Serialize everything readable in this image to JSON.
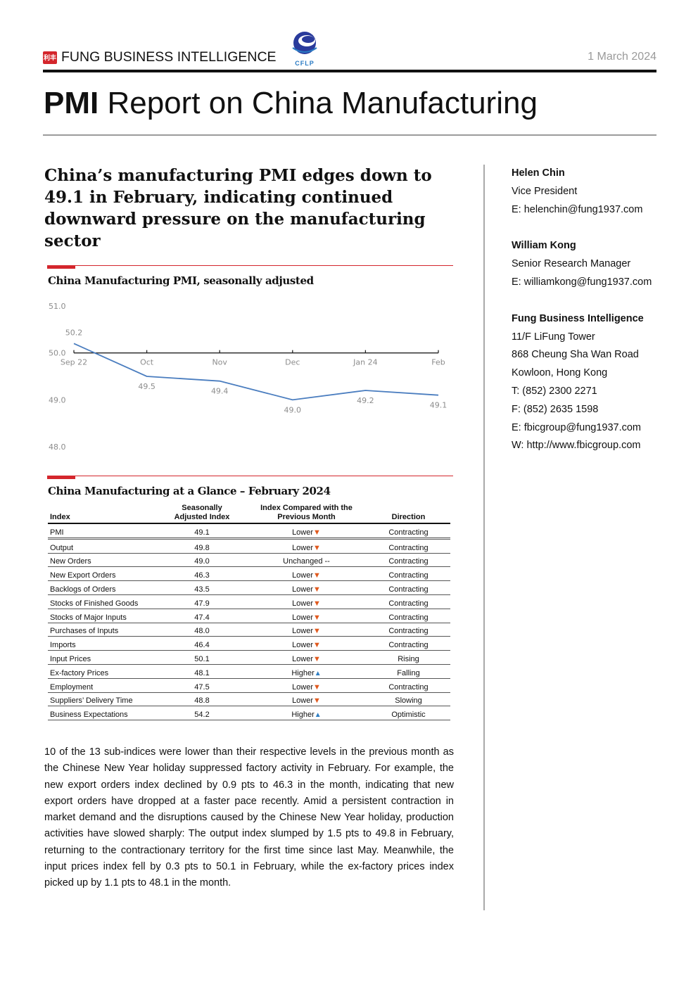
{
  "header": {
    "brand_logo": "利丰",
    "brand_name": "FUNG BUSINESS INTELLIGENCE",
    "partner_logo_text": "CFLP",
    "date": "1 March 2024",
    "title_bold": "PMI",
    "title_rest": " Report on China Manufacturing"
  },
  "headline": "China’s manufacturing PMI edges down to 49.1 in February, indicating continued downward pressure on the manufacturing sector",
  "chart_section": {
    "title": "China Manufacturing PMI, seasonally adjusted"
  },
  "chart_data": {
    "type": "line",
    "title": "China Manufacturing PMI, seasonally adjusted",
    "categories": [
      "Sep 22",
      "Oct",
      "Nov",
      "Dec",
      "Jan 24",
      "Feb"
    ],
    "series": [
      {
        "values": [
          50.2,
          49.5,
          49.4,
          49.0,
          49.2,
          49.1
        ]
      }
    ],
    "data_labels": [
      "50.2",
      "49.5",
      "49.4",
      "49.0",
      "49.2",
      "49.1"
    ],
    "y_ticks": [
      "51.0",
      "50.0",
      "49.0",
      "48.0"
    ],
    "ylim": [
      48.0,
      51.0
    ],
    "x_axis_at": 50.0,
    "line_color": "#4a7dbf",
    "grid": false,
    "legend": "none"
  },
  "table_section": {
    "title": "China Manufacturing at a Glance – February 2024"
  },
  "table": {
    "headers": {
      "index": "Index",
      "value_line1": "Seasonally",
      "value_line2": "Adjusted Index",
      "compare_line1": "Index Compared with the",
      "compare_line2": "Previous Month",
      "direction": "Direction"
    },
    "rows": [
      {
        "index": "PMI",
        "value": "49.1",
        "compare": "Lower",
        "arrow": "down",
        "direction": "Contracting"
      },
      {
        "index": "Output",
        "value": "49.8",
        "compare": "Lower",
        "arrow": "down",
        "direction": "Contracting"
      },
      {
        "index": "New Orders",
        "value": "49.0",
        "compare": "Unchanged --",
        "arrow": "none",
        "direction": "Contracting"
      },
      {
        "index": "New Export Orders",
        "value": "46.3",
        "compare": "Lower",
        "arrow": "down",
        "direction": "Contracting"
      },
      {
        "index": "Backlogs of Orders",
        "value": "43.5",
        "compare": "Lower",
        "arrow": "down",
        "direction": "Contracting"
      },
      {
        "index": "Stocks of Finished Goods",
        "value": "47.9",
        "compare": "Lower",
        "arrow": "down",
        "direction": "Contracting"
      },
      {
        "index": "Stocks of Major Inputs",
        "value": "47.4",
        "compare": "Lower",
        "arrow": "down",
        "direction": "Contracting"
      },
      {
        "index": "Purchases of Inputs",
        "value": "48.0",
        "compare": "Lower",
        "arrow": "down",
        "direction": "Contracting"
      },
      {
        "index": "Imports",
        "value": "46.4",
        "compare": "Lower",
        "arrow": "down",
        "direction": "Contracting"
      },
      {
        "index": "Input Prices",
        "value": "50.1",
        "compare": "Lower",
        "arrow": "down",
        "direction": "Rising"
      },
      {
        "index": "Ex-factory Prices",
        "value": "48.1",
        "compare": "Higher",
        "arrow": "up",
        "direction": "Falling"
      },
      {
        "index": "Employment",
        "value": "47.5",
        "compare": "Lower",
        "arrow": "down",
        "direction": "Contracting"
      },
      {
        "index": "Suppliers’ Delivery Time",
        "value": "48.8",
        "compare": "Lower",
        "arrow": "down",
        "direction": "Slowing"
      },
      {
        "index": "Business Expectations",
        "value": "54.2",
        "compare": "Higher",
        "arrow": "up",
        "direction": "Optimistic"
      }
    ]
  },
  "paragraph": "10 of the 13 sub-indices were lower than their respective levels in the previous month as the Chinese New Year holiday suppressed factory activity in February. For example, the new export orders index declined by 0.9 pts to 46.3 in the month, indicating that new export orders have dropped at a faster pace recently. Amid a persistent contraction in market demand and the disruptions caused by the Chinese New Year holiday, production activities have slowed sharply: The output index slumped by 1.5 pts to 49.8 in February, returning to the contractionary territory for the first time since last May. Meanwhile, the input prices index fell by 0.3 pts to 50.1 in February, while the ex-factory prices index picked up by 1.1 pts to 48.1 in the month.",
  "contacts": {
    "person1": {
      "name": "Helen Chin",
      "role": "Vice President",
      "email": "E: helenchin@fung1937.com"
    },
    "person2": {
      "name": "William Kong",
      "role": "Senior Research Manager",
      "email": "E: williamkong@fung1937.com"
    },
    "org": {
      "name": "Fung Business Intelligence",
      "addr1": "11/F LiFung Tower",
      "addr2": "868 Cheung Sha Wan Road",
      "addr3": "Kowloon, Hong Kong",
      "tel": "T: (852) 2300 2271",
      "fax": "F: (852) 2635 1598",
      "email": "E: fbicgroup@fung1937.com",
      "web": "W: http://www.fbicgroup.com"
    }
  },
  "colors": {
    "accent_red": "#d4262c",
    "arrow_down": "#e05a1f",
    "arrow_up": "#2f7fc4"
  }
}
